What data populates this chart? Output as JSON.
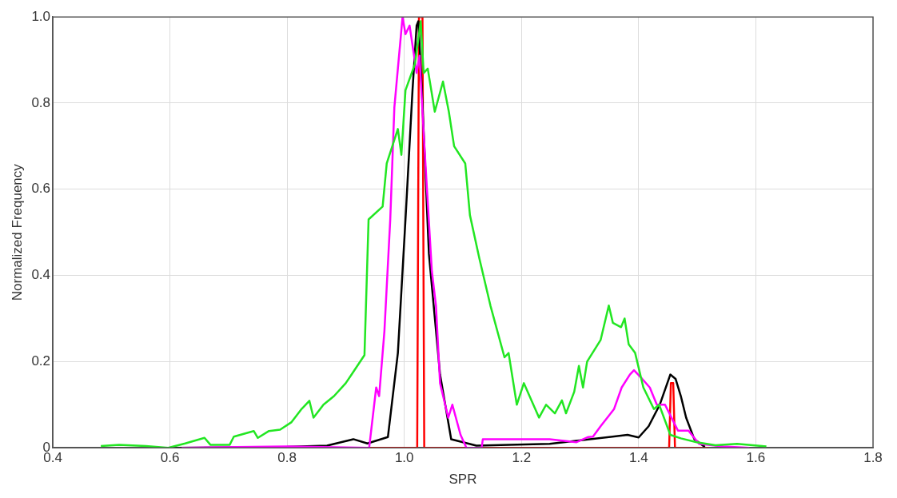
{
  "chart_data": {
    "type": "line",
    "xlabel": "SPR",
    "ylabel": "Normalized Frequency",
    "xlim": [
      0.4,
      1.8
    ],
    "ylim": [
      0,
      1
    ],
    "xticks": [
      0.4,
      0.6,
      0.8,
      {
        "value": 1,
        "label": "1.0"
      },
      1.2,
      1.4,
      1.6,
      1.8
    ],
    "yticks": [
      0,
      0.2,
      0.4,
      0.6,
      0.8,
      {
        "value": 1,
        "label": "1.0"
      }
    ],
    "grid": true,
    "line_style": "solid",
    "series": [
      {
        "color": "#22e622",
        "x": [
          0.482,
          0.513,
          0.559,
          0.597,
          0.626,
          0.659,
          0.669,
          0.702,
          0.709,
          0.743,
          0.75,
          0.769,
          0.788,
          0.807,
          0.824,
          0.838,
          0.845,
          0.862,
          0.88,
          0.9,
          0.91,
          0.932,
          0.939,
          0.963,
          0.97,
          0.989,
          0.995,
          1.002,
          1.018,
          1.028,
          1.033,
          1.04,
          1.052,
          1.066,
          1.076,
          1.085,
          1.104,
          1.112,
          1.128,
          1.147,
          1.171,
          1.178,
          1.192,
          1.204,
          1.23,
          1.242,
          1.257,
          1.269,
          1.276,
          1.29,
          1.298,
          1.305,
          1.312,
          1.335,
          1.349,
          1.356,
          1.37,
          1.376,
          1.383,
          1.394,
          1.408,
          1.426,
          1.435,
          1.454,
          1.472,
          1.499,
          1.531,
          1.568,
          1.595,
          1.618
        ],
        "values": [
          0.004,
          0.007,
          0.004,
          0,
          0.01,
          0.023,
          0.007,
          0.007,
          0.026,
          0.039,
          0.023,
          0.039,
          0.042,
          0.059,
          0.089,
          0.109,
          0.07,
          0.1,
          0.12,
          0.15,
          0.17,
          0.215,
          0.53,
          0.56,
          0.66,
          0.74,
          0.68,
          0.83,
          0.89,
          0.99,
          0.87,
          0.88,
          0.78,
          0.85,
          0.78,
          0.7,
          0.66,
          0.54,
          0.44,
          0.33,
          0.21,
          0.22,
          0.1,
          0.15,
          0.07,
          0.1,
          0.08,
          0.11,
          0.08,
          0.13,
          0.19,
          0.14,
          0.2,
          0.25,
          0.33,
          0.29,
          0.28,
          0.3,
          0.24,
          0.22,
          0.14,
          0.09,
          0.1,
          0.03,
          0.022,
          0.013,
          0.006,
          0.009,
          0.006,
          0.003
        ]
      },
      {
        "color": "#ff00ff",
        "x": [
          0.62,
          0.8,
          0.94,
          0.952,
          0.957,
          0.966,
          0.976,
          0.983,
          0.997,
          1.002,
          1.009,
          1.021,
          1.026,
          1.033,
          1.047,
          1.054,
          1.061,
          1.075,
          1.082,
          1.096,
          1.106,
          1.132,
          1.134,
          1.17,
          1.218,
          1.248,
          1.294,
          1.314,
          1.322,
          1.335,
          1.358,
          1.371,
          1.385,
          1.392,
          1.406,
          1.419,
          1.431,
          1.445,
          1.467,
          1.485,
          1.503,
          1.544,
          1.589
        ],
        "values": [
          0,
          0.003,
          0,
          0.14,
          0.12,
          0.27,
          0.53,
          0.79,
          1.0,
          0.96,
          0.98,
          0.87,
          0.91,
          0.73,
          0.41,
          0.33,
          0.15,
          0.07,
          0.1,
          0.03,
          0,
          0,
          0.02,
          0.02,
          0.02,
          0.02,
          0.013,
          0.025,
          0.026,
          0.05,
          0.09,
          0.14,
          0.17,
          0.18,
          0.16,
          0.14,
          0.1,
          0.1,
          0.04,
          0.04,
          0.009,
          0.003,
          0
        ]
      },
      {
        "color": "#000000",
        "x": [
          0.6,
          0.8,
          0.868,
          0.913,
          0.937,
          0.972,
          0.989,
          1.002,
          1.014,
          1.021,
          1.024,
          1.03,
          1.042,
          1.061,
          1.08,
          1.123,
          1.248,
          1.381,
          1.4,
          1.417,
          1.436,
          1.454,
          1.463,
          1.472,
          1.481,
          1.495,
          1.513
        ],
        "values": [
          0,
          0.002,
          0.005,
          0.02,
          0.01,
          0.025,
          0.22,
          0.53,
          0.83,
          0.98,
          0.99,
          0.83,
          0.45,
          0.17,
          0.02,
          0.005,
          0.009,
          0.03,
          0.024,
          0.05,
          0.1,
          0.17,
          0.16,
          0.12,
          0.07,
          0.02,
          0.002
        ]
      },
      {
        "color": "#ff0000",
        "x": [
          0.93,
          1.022,
          1.025,
          1.031,
          1.034,
          1.452,
          1.455,
          1.459,
          1.462,
          1.52
        ],
        "values": [
          0,
          0,
          1.0,
          1.0,
          0,
          0,
          0.15,
          0.15,
          0,
          0
        ]
      }
    ]
  }
}
